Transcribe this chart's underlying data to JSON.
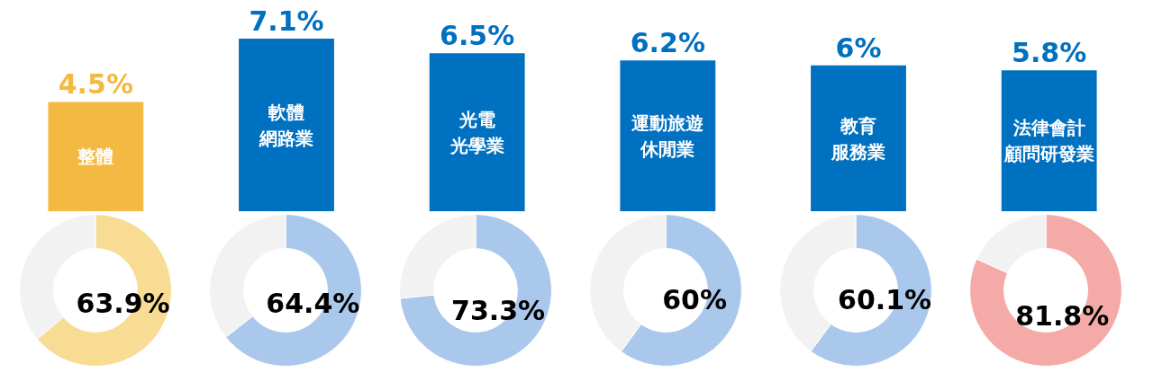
{
  "chart_data": [
    {
      "type": "bar",
      "categories": [
        "整體",
        "軟體網路業",
        "光電光學業",
        "運動旅遊休閒業",
        "教育服務業",
        "法律會計顧問研發業"
      ],
      "values": [
        4.5,
        7.1,
        6.5,
        6.2,
        6,
        5.8
      ],
      "value_labels": [
        "4.5%",
        "7.1%",
        "6.5%",
        "6.2%",
        "6%",
        "5.8%"
      ],
      "colors": [
        "#f4b942",
        "#0070c0",
        "#0070c0",
        "#0070c0",
        "#0070c0",
        "#0070c0"
      ],
      "tick_labels": false
    },
    {
      "type": "donut",
      "categories": [
        null,
        null
      ],
      "values": [
        63.9,
        36.1
      ],
      "colors": [
        "#f8dc94",
        "#f2f2f2"
      ],
      "value_labels": [
        "63.9%",
        null
      ]
    },
    {
      "type": "donut",
      "categories": [
        null,
        null
      ],
      "values": [
        64.4,
        35.6
      ],
      "colors": [
        "#a9c8ec",
        "#f2f2f2"
      ],
      "value_labels": [
        "64.4%",
        null
      ]
    },
    {
      "type": "donut",
      "categories": [
        null,
        null
      ],
      "values": [
        73.3,
        26.7
      ],
      "colors": [
        "#a9c8ec",
        "#f2f2f2"
      ],
      "value_labels": [
        "73.3%",
        null
      ]
    },
    {
      "type": "donut",
      "categories": [
        null,
        null
      ],
      "values": [
        60,
        40
      ],
      "colors": [
        "#a9c8ec",
        "#f2f2f2"
      ],
      "value_labels": [
        "60%",
        null
      ]
    },
    {
      "type": "donut",
      "categories": [
        null,
        null
      ],
      "values": [
        60.1,
        39.9
      ],
      "colors": [
        "#a9c8ec",
        "#f2f2f2"
      ],
      "value_labels": [
        "60.1%",
        null
      ]
    },
    {
      "type": "donut",
      "categories": [
        null,
        null
      ],
      "values": [
        81.8,
        18.2
      ],
      "colors": [
        "#f4aaa6",
        "#f2f2f2"
      ],
      "value_labels": [
        "81.8%",
        null
      ]
    }
  ]
}
